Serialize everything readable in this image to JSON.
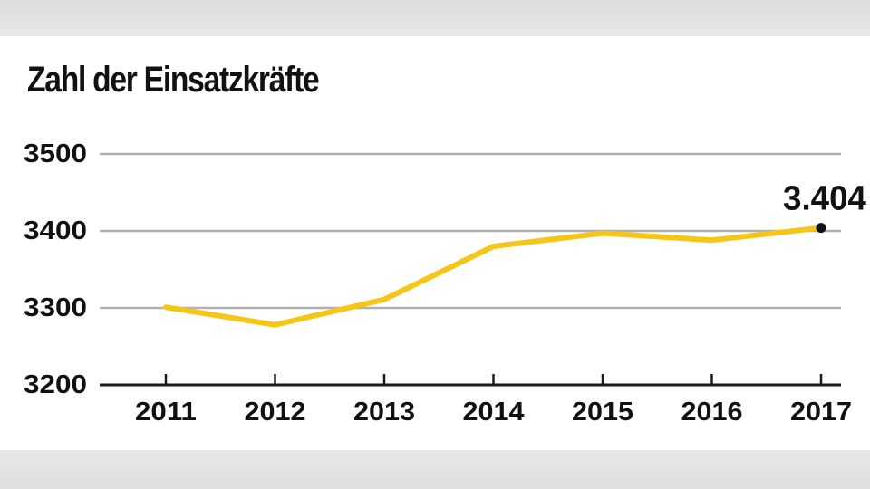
{
  "chart_data": {
    "type": "line",
    "title": "Zahl der Einsatzkräfte",
    "xlabel": "",
    "ylabel": "",
    "categories": [
      "2011",
      "2012",
      "2013",
      "2014",
      "2015",
      "2016",
      "2017"
    ],
    "series": [
      {
        "values": [
          3301,
          3278,
          3311,
          3380,
          3397,
          3388,
          3404
        ]
      }
    ],
    "ylim": [
      3200,
      3500
    ],
    "yticks": [
      3200,
      3300,
      3400,
      3500
    ],
    "grid": true,
    "annotation": {
      "category": "2017",
      "value": 3404,
      "label": "3.404"
    },
    "colors": {
      "line": "#f5c518",
      "grid": "#b0b0b0",
      "axis": "#1a1a1a",
      "text": "#111111"
    }
  }
}
